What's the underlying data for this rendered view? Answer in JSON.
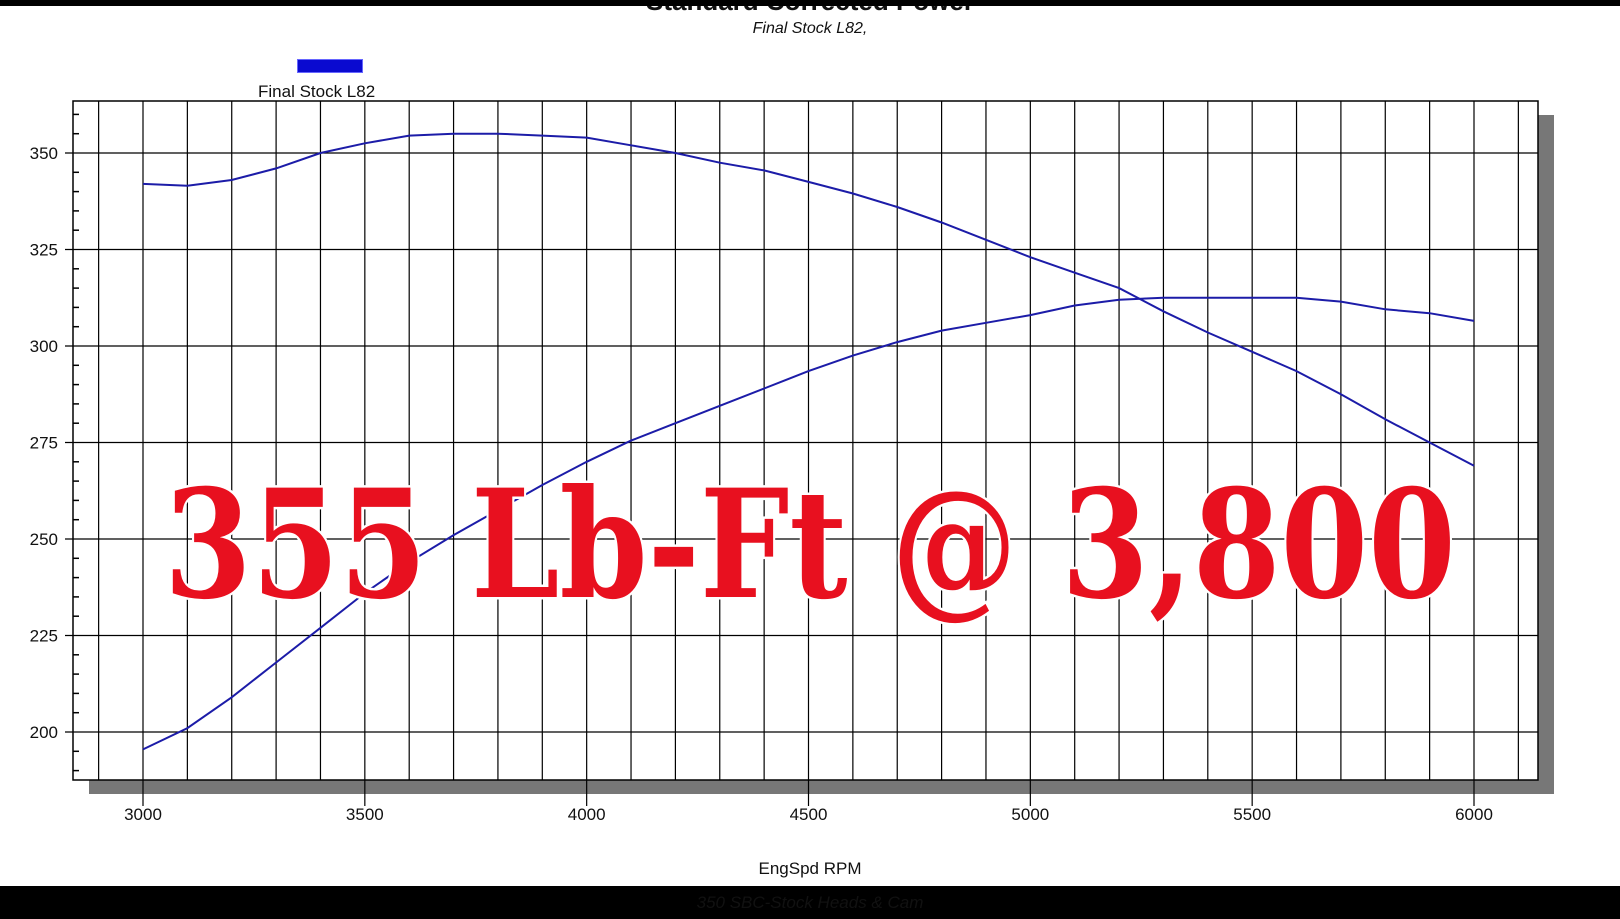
{
  "chart_data": {
    "type": "line",
    "title": "Standard Corrected Power",
    "subtitle": "Final Stock L82,",
    "xlabel": "EngSpd  RPM",
    "footer": "350 SBC-Stock Heads & Cam",
    "overlay_text": "355 Lb-Ft @ 3,800",
    "xlim": [
      2850,
      6150
    ],
    "ylim": [
      186,
      363
    ],
    "xticks": [
      3000,
      3500,
      4000,
      4500,
      5000,
      5500,
      6000
    ],
    "yticks": [
      200,
      225,
      250,
      275,
      300,
      325,
      350
    ],
    "grid": true,
    "legend": {
      "position": "top-left",
      "entries": [
        "Final Stock L82"
      ]
    },
    "line_color": "#1c1ca8",
    "overlay_color": "#e8101f",
    "x": [
      3000,
      3100,
      3200,
      3300,
      3400,
      3500,
      3600,
      3700,
      3800,
      3900,
      4000,
      4100,
      4200,
      4300,
      4400,
      4500,
      4600,
      4700,
      4800,
      4900,
      5000,
      5100,
      5200,
      5300,
      5400,
      5500,
      5600,
      5700,
      5800,
      5900,
      6000
    ],
    "series": [
      {
        "values": [
          342,
          341.5,
          343,
          346,
          350,
          352.5,
          354.5,
          355,
          355,
          354.5,
          354,
          352,
          350,
          347.5,
          345.5,
          342.5,
          339.5,
          336,
          332,
          327.5,
          323,
          319,
          315,
          309,
          303.5,
          298.5,
          293.5,
          287.5,
          281,
          275,
          269
        ]
      },
      {
        "values": [
          195.5,
          201,
          209,
          218,
          227,
          236,
          244,
          251,
          257.5,
          264,
          270,
          275.5,
          280,
          284.5,
          289,
          293.5,
          297.5,
          301,
          304,
          306,
          308,
          310.5,
          312,
          312.5,
          312.5,
          312.5,
          312.5,
          311.5,
          309.5,
          308.5,
          306.5
        ]
      }
    ]
  }
}
